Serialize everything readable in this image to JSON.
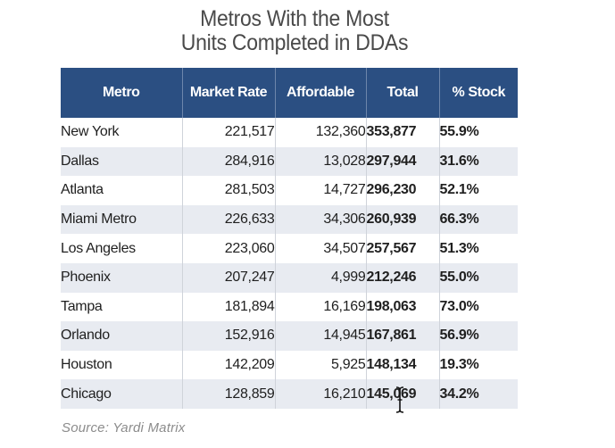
{
  "title": {
    "line1": "Metros With the Most",
    "line2": "Units Completed in DDAs"
  },
  "table": {
    "headers": [
      "Metro",
      "Market Rate",
      "Affordable",
      "Total",
      "% Stock"
    ],
    "rows": [
      [
        "New York",
        "221,517",
        "132,360",
        "353,877",
        "55.9%"
      ],
      [
        "Dallas",
        "284,916",
        "13,028",
        "297,944",
        "31.6%"
      ],
      [
        "Atlanta",
        "281,503",
        "14,727",
        "296,230",
        "52.1%"
      ],
      [
        "Miami Metro",
        "226,633",
        "34,306",
        "260,939",
        "66.3%"
      ],
      [
        "Los Angeles",
        "223,060",
        "34,507",
        "257,567",
        "51.3%"
      ],
      [
        "Phoenix",
        "207,247",
        "4,999",
        "212,246",
        "55.0%"
      ],
      [
        "Tampa",
        "181,894",
        "16,169",
        "198,063",
        "73.0%"
      ],
      [
        "Orlando",
        "152,916",
        "14,945",
        "167,861",
        "56.9%"
      ],
      [
        "Houston",
        "142,209",
        "5,925",
        "148,134",
        "19.3%"
      ],
      [
        "Chicago",
        "128,859",
        "16,210",
        "145,069",
        "34.2%"
      ]
    ]
  },
  "source": "Source: Yardi Matrix",
  "colors": {
    "header_bg": "#2b4f82",
    "stripe_bg": "#e8ebf1",
    "title_text": "#4a4a4a",
    "source_text": "#8c8c8c"
  },
  "cursor_icon": "text-cursor-icon"
}
